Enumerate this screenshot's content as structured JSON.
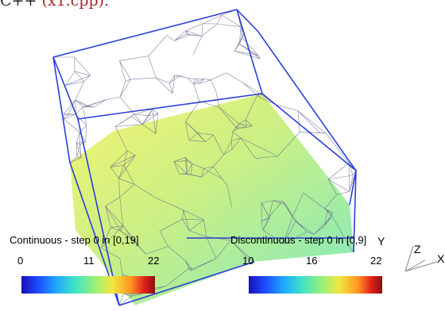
{
  "caption": {
    "prefix": "C++",
    "link": "(x1.cpp)."
  },
  "colorbars": {
    "continuous": {
      "title": "Continuous - step 0 in [0,19]",
      "ticks": [
        "0",
        "11",
        "22"
      ]
    },
    "discontinuous": {
      "title": "Discontinuous - step 0 in [0,9]",
      "ticks": [
        "10",
        "16",
        "22"
      ]
    }
  },
  "axes": {
    "y": "Y",
    "z": "Z",
    "x": "X"
  }
}
